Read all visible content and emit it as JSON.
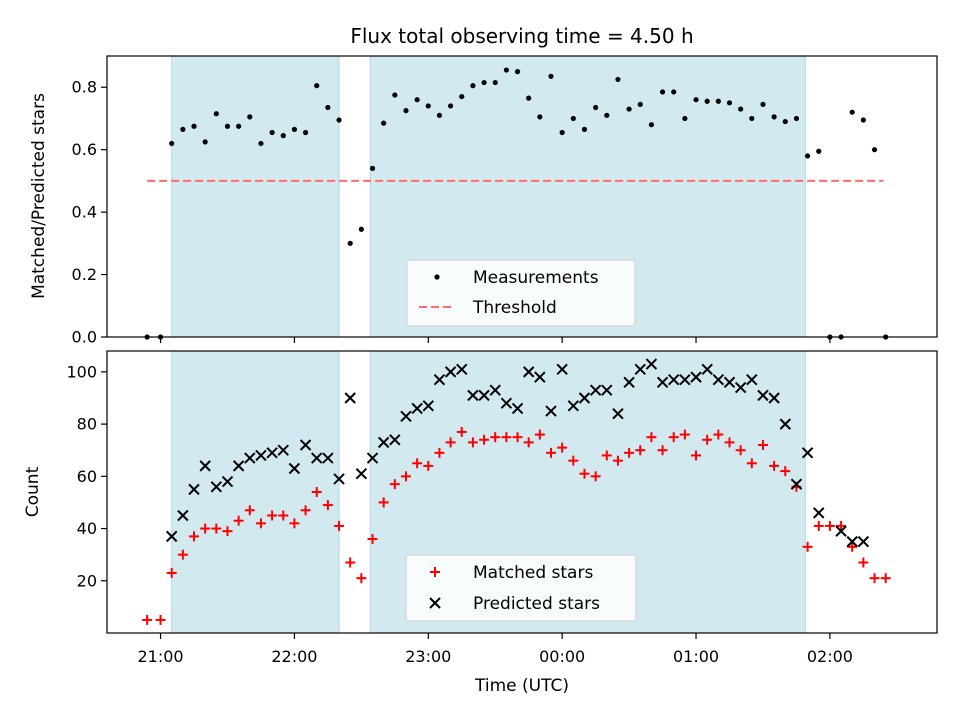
{
  "chart_data": [
    {
      "type": "scatter",
      "title": "Flux total observing time = 4.50 h",
      "xlabel": "",
      "ylabel": "Matched/Predicted stars",
      "xlim": [
        "20:36",
        "02:48"
      ],
      "ylim": [
        0,
        0.9
      ],
      "yticks": [
        "0.0",
        "0.2",
        "0.4",
        "0.6",
        "0.8"
      ],
      "shaded_intervals": [
        [
          "21:05",
          "22:20"
        ],
        [
          "22:34",
          "01:49"
        ]
      ],
      "legend": [
        "Measurements",
        "Threshold"
      ],
      "legend_position": "lower center",
      "series": [
        {
          "name": "Measurements",
          "marker": "dot",
          "color": "#000000",
          "x": [
            "20:54",
            "21:00",
            "21:05",
            "21:10",
            "21:15",
            "21:20",
            "21:25",
            "21:30",
            "21:35",
            "21:40",
            "21:45",
            "21:50",
            "21:55",
            "22:00",
            "22:05",
            "22:10",
            "22:15",
            "22:20",
            "22:25",
            "22:30",
            "22:35",
            "22:40",
            "22:45",
            "22:50",
            "22:55",
            "23:00",
            "23:05",
            "23:10",
            "23:15",
            "23:20",
            "23:25",
            "23:30",
            "23:35",
            "23:40",
            "23:45",
            "23:50",
            "23:55",
            "00:00",
            "00:05",
            "00:10",
            "00:15",
            "00:20",
            "00:25",
            "00:30",
            "00:35",
            "00:40",
            "00:45",
            "00:50",
            "00:55",
            "01:00",
            "01:05",
            "01:10",
            "01:15",
            "01:20",
            "01:25",
            "01:30",
            "01:35",
            "01:40",
            "01:45",
            "01:50",
            "01:55",
            "02:00",
            "02:05",
            "02:10",
            "02:15",
            "02:20",
            "02:25"
          ],
          "y": [
            0.0,
            0.0,
            0.62,
            0.665,
            0.675,
            0.625,
            0.715,
            0.675,
            0.675,
            0.705,
            0.62,
            0.655,
            0.645,
            0.665,
            0.655,
            0.805,
            0.735,
            0.695,
            0.3,
            0.345,
            0.54,
            0.685,
            0.775,
            0.725,
            0.76,
            0.74,
            0.71,
            0.74,
            0.77,
            0.805,
            0.815,
            0.815,
            0.855,
            0.85,
            0.765,
            0.705,
            0.835,
            0.655,
            0.7,
            0.665,
            0.735,
            0.71,
            0.825,
            0.73,
            0.745,
            0.68,
            0.785,
            0.785,
            0.7,
            0.76,
            0.755,
            0.755,
            0.75,
            0.73,
            0.7,
            0.745,
            0.705,
            0.69,
            0.7,
            0.58,
            0.595,
            0.0,
            0.0,
            0.72,
            0.695,
            0.6,
            0.0
          ]
        },
        {
          "name": "Threshold",
          "style": "dashed",
          "color": "#ff6b6b",
          "x": [
            "20:54",
            "02:24"
          ],
          "y": [
            0.5,
            0.5
          ]
        }
      ]
    },
    {
      "type": "scatter",
      "title": "",
      "xlabel": "Time (UTC)",
      "ylabel": "Count",
      "xlim": [
        "20:36",
        "02:48"
      ],
      "ylim": [
        0,
        108
      ],
      "yticks": [
        "20",
        "40",
        "60",
        "80",
        "100"
      ],
      "xticks": [
        "21:00",
        "22:00",
        "23:00",
        "00:00",
        "01:00",
        "02:00"
      ],
      "shaded_intervals": [
        [
          "21:05",
          "22:20"
        ],
        [
          "22:34",
          "01:49"
        ]
      ],
      "legend": [
        "Matched stars",
        "Predicted stars"
      ],
      "legend_position": "lower center",
      "series": [
        {
          "name": "Matched stars",
          "marker": "plus",
          "color": "#ff0000",
          "x": [
            "20:54",
            "21:00",
            "21:05",
            "21:10",
            "21:15",
            "21:20",
            "21:25",
            "21:30",
            "21:35",
            "21:40",
            "21:45",
            "21:50",
            "21:55",
            "22:00",
            "22:05",
            "22:10",
            "22:15",
            "22:20",
            "22:25",
            "22:30",
            "22:35",
            "22:40",
            "22:45",
            "22:50",
            "22:55",
            "23:00",
            "23:05",
            "23:10",
            "23:15",
            "23:20",
            "23:25",
            "23:30",
            "23:35",
            "23:40",
            "23:45",
            "23:50",
            "23:55",
            "00:00",
            "00:05",
            "00:10",
            "00:15",
            "00:20",
            "00:25",
            "00:30",
            "00:35",
            "00:40",
            "00:45",
            "00:50",
            "00:55",
            "01:00",
            "01:05",
            "01:10",
            "01:15",
            "01:20",
            "01:25",
            "01:30",
            "01:35",
            "01:40",
            "01:45",
            "01:50",
            "01:55",
            "02:00",
            "02:05",
            "02:10",
            "02:15",
            "02:20",
            "02:25"
          ],
          "y": [
            5,
            5,
            23,
            30,
            37,
            40,
            40,
            39,
            43,
            47,
            42,
            45,
            45,
            42,
            47,
            54,
            49,
            41,
            27,
            21,
            36,
            50,
            57,
            60,
            65,
            64,
            69,
            73,
            77,
            73,
            74,
            75,
            75,
            75,
            73,
            76,
            69,
            71,
            66,
            61,
            60,
            68,
            66,
            69,
            70,
            75,
            70,
            75,
            76,
            68,
            74,
            76,
            73,
            70,
            65,
            72,
            64,
            62,
            56,
            33,
            41,
            41,
            41,
            33,
            27,
            21,
            21
          ]
        },
        {
          "name": "Predicted stars",
          "marker": "x",
          "color": "#000000",
          "x": [
            "21:05",
            "21:10",
            "21:15",
            "21:20",
            "21:25",
            "21:30",
            "21:35",
            "21:40",
            "21:45",
            "21:50",
            "21:55",
            "22:00",
            "22:05",
            "22:10",
            "22:15",
            "22:20",
            "22:25",
            "22:30",
            "22:35",
            "22:40",
            "22:45",
            "22:50",
            "22:55",
            "23:00",
            "23:05",
            "23:10",
            "23:15",
            "23:20",
            "23:25",
            "23:30",
            "23:35",
            "23:40",
            "23:45",
            "23:50",
            "23:55",
            "00:00",
            "00:05",
            "00:10",
            "00:15",
            "00:20",
            "00:25",
            "00:30",
            "00:35",
            "00:40",
            "00:45",
            "00:50",
            "00:55",
            "01:00",
            "01:05",
            "01:10",
            "01:15",
            "01:20",
            "01:25",
            "01:30",
            "01:35",
            "01:40",
            "01:45",
            "01:50",
            "01:55",
            "02:05",
            "02:10",
            "02:15"
          ],
          "y": [
            37,
            45,
            55,
            64,
            56,
            58,
            64,
            67,
            68,
            69,
            70,
            63,
            72,
            67,
            67,
            59,
            90,
            61,
            67,
            73,
            74,
            83,
            86,
            87,
            97,
            100,
            101,
            91,
            91,
            93,
            88,
            86,
            100,
            98,
            85,
            101,
            87,
            90,
            93,
            93,
            84,
            96,
            101,
            103,
            96,
            97,
            97,
            98,
            101,
            97,
            96,
            94,
            97,
            91,
            90,
            80,
            57,
            69,
            46,
            39,
            35,
            35
          ]
        }
      ]
    }
  ]
}
